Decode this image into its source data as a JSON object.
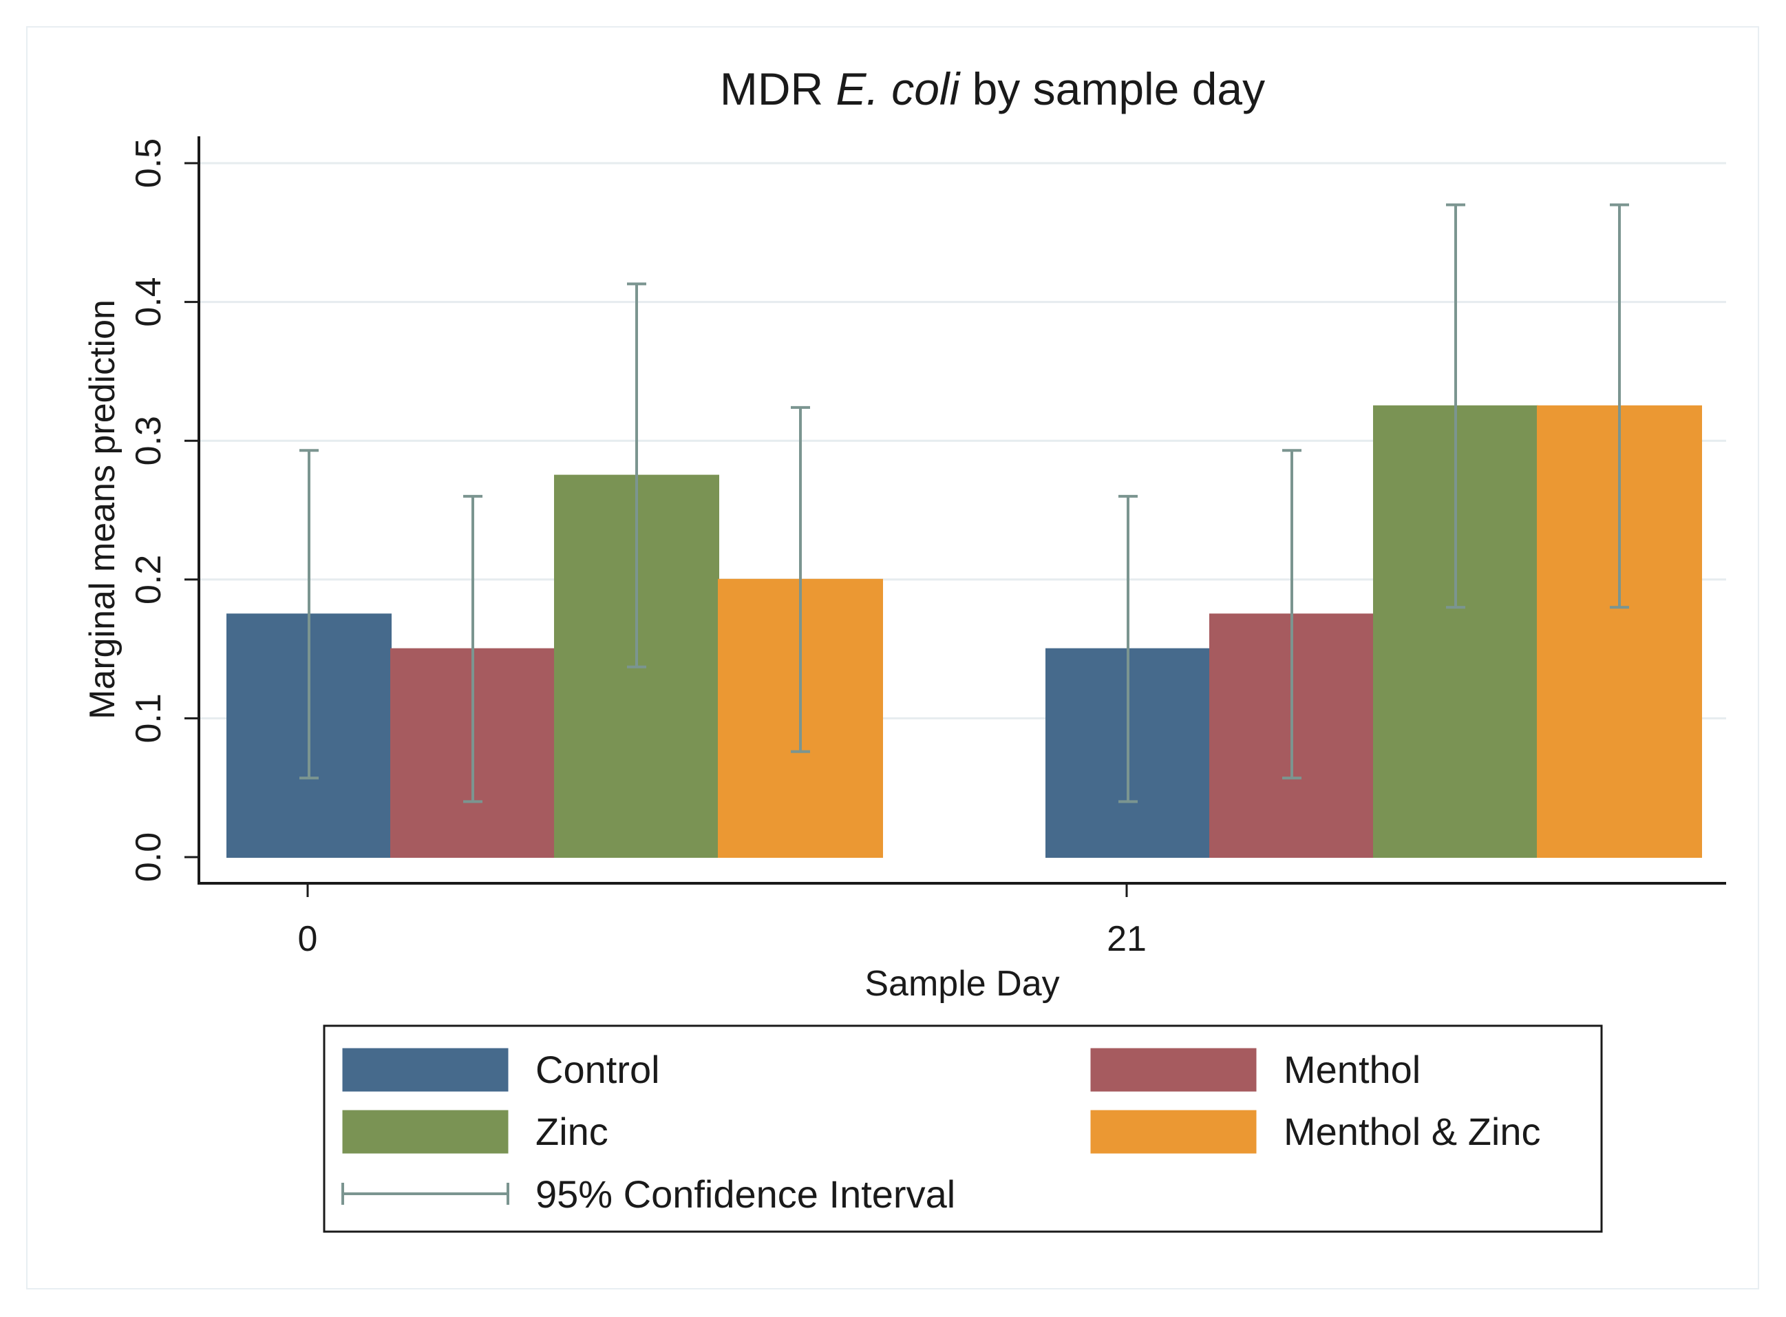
{
  "chart_data": {
    "type": "bar",
    "title": {
      "prefix": "MDR ",
      "italic": "E. coli",
      "suffix": " by sample day"
    },
    "xlabel": "Sample Day",
    "ylabel": "Marginal means prediction",
    "categories": [
      "0",
      "21"
    ],
    "ylim": [
      0,
      0.5
    ],
    "yticks": [
      "0.0",
      "0.1",
      "0.2",
      "0.3",
      "0.4",
      "0.5"
    ],
    "series": [
      {
        "name": "Control",
        "color": "#466a8c",
        "values": [
          0.175,
          0.15
        ],
        "ci_low": [
          0.057,
          0.04
        ],
        "ci_high": [
          0.293,
          0.26
        ]
      },
      {
        "name": "Menthol",
        "color": "#a65b5f",
        "values": [
          0.15,
          0.175
        ],
        "ci_low": [
          0.04,
          0.057
        ],
        "ci_high": [
          0.26,
          0.293
        ]
      },
      {
        "name": "Zinc",
        "color": "#7a9354",
        "values": [
          0.275,
          0.325
        ],
        "ci_low": [
          0.137,
          0.18
        ],
        "ci_high": [
          0.413,
          0.47
        ]
      },
      {
        "name": "Menthol & Zinc",
        "color": "#eb9833",
        "values": [
          0.2,
          0.325
        ],
        "ci_low": [
          0.076,
          0.18
        ],
        "ci_high": [
          0.324,
          0.47
        ]
      }
    ],
    "ci_label": "95% Confidence Interval",
    "ci_color": "#7b9590",
    "grid": true,
    "legend_position": "bottom"
  }
}
